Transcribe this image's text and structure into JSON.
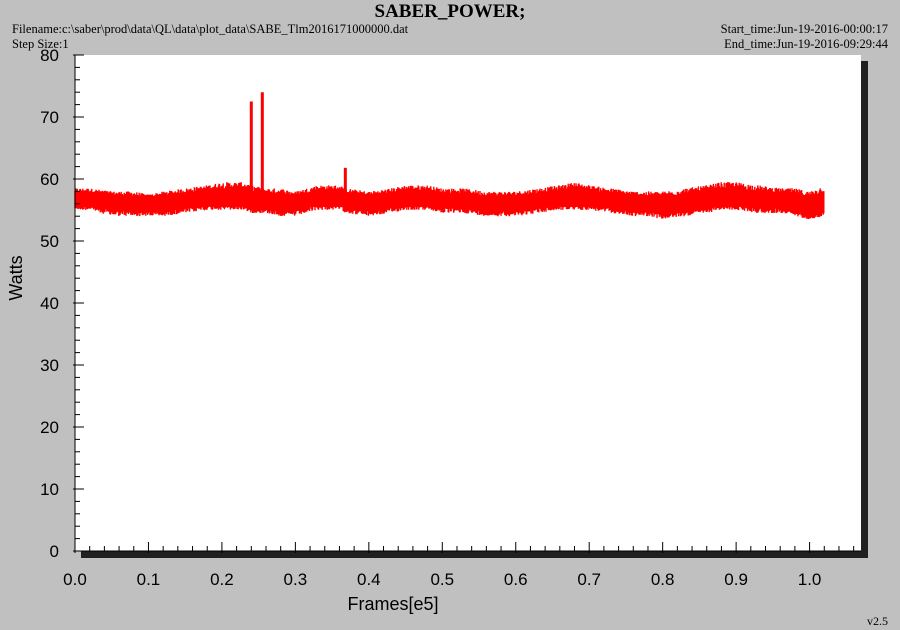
{
  "header": {
    "title": "SABER_POWER;",
    "filename": "Filename:c:\\saber\\prod\\data\\QL\\data\\plot_data\\SABE_Tlm2016171000000.dat",
    "step_size": "Step Size:1",
    "start_time": "Start_time:Jun-19-2016-00:00:17",
    "end_time": "End_time:Jun-19-2016-09:29:44",
    "version": "v2.5"
  },
  "colors": {
    "background": "#c0c0c0",
    "plot_area": "#ffffff",
    "series": "#ff0000",
    "axis": "#000000",
    "shadow": "#202020"
  },
  "chart_data": {
    "type": "line",
    "title": "SABER_POWER;",
    "xlabel": "Frames[e5]",
    "ylabel": "Watts",
    "xlim": [
      0.0,
      1.07
    ],
    "ylim": [
      0,
      80
    ],
    "xticks": [
      "0.0",
      "0.1",
      "0.2",
      "0.3",
      "0.4",
      "0.5",
      "0.6",
      "0.7",
      "0.8",
      "0.9",
      "1.0"
    ],
    "xtick_values": [
      0.0,
      0.1,
      0.2,
      0.3,
      0.4,
      0.5,
      0.6,
      0.7,
      0.8,
      0.9,
      1.0
    ],
    "yticks": [
      "0",
      "10",
      "20",
      "30",
      "40",
      "50",
      "60",
      "70",
      "80"
    ],
    "ytick_values": [
      0,
      10,
      20,
      30,
      40,
      50,
      60,
      70,
      80
    ],
    "grid": false,
    "legend": "none",
    "series": [
      {
        "x": [
          0.0,
          0.02,
          0.05,
          0.08,
          0.1,
          0.12,
          0.15,
          0.18,
          0.2,
          0.23,
          0.24,
          0.26,
          0.28,
          0.3,
          0.33,
          0.36,
          0.37,
          0.4,
          0.43,
          0.45,
          0.48,
          0.5,
          0.53,
          0.56,
          0.58,
          0.6,
          0.63,
          0.66,
          0.68,
          0.7,
          0.73,
          0.76,
          0.78,
          0.8,
          0.83,
          0.86,
          0.88,
          0.9,
          0.93,
          0.96,
          0.98,
          1.0,
          1.02
        ],
        "y": [
          57,
          57,
          56.5,
          56,
          56,
          56,
          56.5,
          57,
          57,
          57,
          56.5,
          56.5,
          56,
          56,
          57,
          57,
          56.5,
          56,
          56.5,
          57,
          57,
          56.5,
          56.5,
          56,
          56,
          56,
          56.5,
          57,
          57,
          57,
          56.5,
          56,
          56,
          55.5,
          56,
          56.5,
          57,
          57,
          56.5,
          56.5,
          56,
          55.5,
          56
        ],
        "band_min": [
          55,
          55,
          54,
          54,
          54,
          54,
          54.5,
          55,
          55,
          55,
          54.5,
          54.5,
          54,
          54,
          55,
          55,
          54.5,
          54,
          54.5,
          55,
          55,
          54.5,
          54.5,
          54,
          54,
          54,
          54.5,
          55,
          55,
          55,
          54.5,
          54,
          54,
          53.5,
          54,
          54.5,
          55,
          55,
          54.5,
          54.5,
          54,
          53.5,
          54
        ],
        "band_max": [
          58.5,
          58.5,
          58,
          58,
          57.5,
          58,
          58.5,
          59,
          59.5,
          59.5,
          59,
          58.5,
          58.5,
          58,
          59,
          59,
          58.5,
          58,
          58.5,
          59,
          59,
          58.5,
          58.5,
          58,
          58,
          58,
          58.5,
          59,
          59.5,
          59,
          58.5,
          58,
          58,
          58,
          58.5,
          59,
          59.5,
          59.5,
          59,
          58.5,
          58.5,
          58,
          59
        ],
        "spikes": [
          {
            "x": 0.24,
            "y": 72.5
          },
          {
            "x": 0.255,
            "y": 74
          },
          {
            "x": 0.368,
            "y": 61.8
          }
        ]
      }
    ]
  }
}
